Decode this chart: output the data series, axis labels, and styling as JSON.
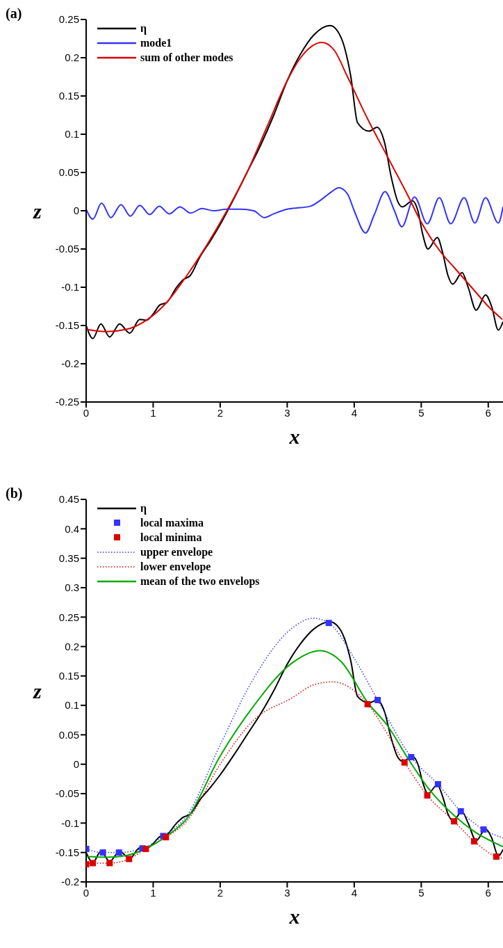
{
  "chart_data": [
    {
      "type": "line",
      "title": "(a)",
      "xlabel": "x",
      "ylabel": "z",
      "xlim": [
        0,
        6.22
      ],
      "xticks": [
        0,
        1,
        2,
        3,
        4,
        5,
        6
      ],
      "ylim": [
        -0.25,
        0.25
      ],
      "yticks": [
        -0.25,
        -0.2,
        -0.15,
        -0.1,
        -0.05,
        0,
        0.05,
        0.1,
        0.15,
        0.2,
        0.25
      ],
      "legend": "top left",
      "series": [
        {
          "name": "η",
          "color": "#000000",
          "x": [
            0,
            0.1,
            0.22,
            0.35,
            0.5,
            0.65,
            0.8,
            0.9,
            1.0,
            1.1,
            1.2,
            1.35,
            1.45,
            1.55,
            1.7,
            1.85,
            2.0,
            2.2,
            2.4,
            2.6,
            2.8,
            3.0,
            3.2,
            3.4,
            3.64,
            3.75,
            3.85,
            3.95,
            4.05,
            4.22,
            4.34,
            4.45,
            4.55,
            4.65,
            4.72,
            4.87,
            4.95,
            5.02,
            5.1,
            5.24,
            5.32,
            5.4,
            5.47,
            5.61,
            5.7,
            5.82,
            5.96,
            6.05,
            6.15,
            6.22
          ],
          "values": [
            -0.15,
            -0.167,
            -0.148,
            -0.165,
            -0.148,
            -0.16,
            -0.142,
            -0.143,
            -0.135,
            -0.123,
            -0.12,
            -0.1,
            -0.09,
            -0.085,
            -0.06,
            -0.04,
            -0.018,
            0.015,
            0.05,
            0.085,
            0.125,
            0.17,
            0.205,
            0.23,
            0.242,
            0.235,
            0.215,
            0.175,
            0.115,
            0.104,
            0.109,
            0.09,
            0.045,
            0.012,
            0.005,
            0.013,
            0.0,
            -0.03,
            -0.05,
            -0.035,
            -0.055,
            -0.085,
            -0.096,
            -0.081,
            -0.1,
            -0.13,
            -0.11,
            -0.125,
            -0.156,
            -0.145
          ]
        },
        {
          "name": "mode1",
          "color": "#3333ff",
          "x": [
            0,
            0.1,
            0.23,
            0.37,
            0.52,
            0.66,
            0.8,
            0.95,
            1.09,
            1.24,
            1.4,
            1.56,
            1.73,
            1.9,
            2.1,
            2.3,
            2.5,
            2.66,
            2.8,
            3.0,
            3.2,
            3.35,
            3.5,
            3.65,
            3.77,
            3.9,
            4.0,
            4.17,
            4.3,
            4.46,
            4.6,
            4.71,
            4.9,
            5.09,
            5.27,
            5.44,
            5.64,
            5.8,
            5.96,
            6.15,
            6.22
          ],
          "values": [
            0.002,
            -0.011,
            0.01,
            -0.009,
            0.008,
            -0.007,
            0.007,
            -0.005,
            0.006,
            -0.004,
            0.005,
            -0.003,
            0.003,
            0.0,
            0.002,
            0.002,
            0.0,
            -0.009,
            -0.004,
            0.002,
            0.004,
            0.006,
            0.014,
            0.024,
            0.03,
            0.022,
            0.0,
            -0.029,
            -0.005,
            0.025,
            0.0,
            -0.021,
            0.018,
            -0.017,
            0.017,
            -0.017,
            0.017,
            -0.016,
            0.017,
            -0.016,
            0.005
          ]
        },
        {
          "name": "sum of other modes",
          "color": "#dd0000",
          "x": [
            0,
            0.3,
            0.6,
            0.9,
            1.2,
            1.5,
            1.8,
            2.1,
            2.4,
            2.7,
            3.0,
            3.2,
            3.52,
            3.7,
            3.9,
            4.2,
            4.5,
            4.8,
            5.0,
            5.3,
            5.5,
            5.8,
            6.0,
            6.21
          ],
          "values": [
            -0.155,
            -0.158,
            -0.155,
            -0.143,
            -0.12,
            -0.085,
            -0.045,
            0.0,
            0.05,
            0.11,
            0.17,
            0.2,
            0.22,
            0.21,
            0.175,
            0.12,
            0.07,
            0.02,
            -0.015,
            -0.055,
            -0.075,
            -0.105,
            -0.125,
            -0.142
          ]
        }
      ]
    },
    {
      "type": "line",
      "title": "(b)",
      "xlabel": "x",
      "ylabel": "z",
      "xlim": [
        0,
        6.22
      ],
      "xticks": [
        0,
        1,
        2,
        3,
        4,
        5,
        6
      ],
      "ylim": [
        -0.2,
        0.45
      ],
      "yticks": [
        -0.2,
        -0.15,
        -0.1,
        -0.05,
        0,
        0.05,
        0.1,
        0.15,
        0.2,
        0.25,
        0.3,
        0.35,
        0.4,
        0.45
      ],
      "legend": "top left",
      "series": [
        {
          "name": "η",
          "color": "#000000",
          "x": [
            0,
            0.1,
            0.22,
            0.35,
            0.5,
            0.65,
            0.8,
            0.9,
            1.0,
            1.1,
            1.2,
            1.35,
            1.45,
            1.55,
            1.7,
            1.85,
            2.0,
            2.2,
            2.4,
            2.6,
            2.8,
            3.0,
            3.2,
            3.4,
            3.64,
            3.75,
            3.85,
            3.95,
            4.05,
            4.22,
            4.34,
            4.45,
            4.55,
            4.65,
            4.72,
            4.87,
            4.95,
            5.02,
            5.1,
            5.24,
            5.32,
            5.4,
            5.47,
            5.61,
            5.7,
            5.82,
            5.96,
            6.05,
            6.15,
            6.22
          ],
          "values": [
            -0.15,
            -0.167,
            -0.148,
            -0.165,
            -0.148,
            -0.16,
            -0.142,
            -0.143,
            -0.135,
            -0.123,
            -0.12,
            -0.1,
            -0.09,
            -0.085,
            -0.06,
            -0.04,
            -0.018,
            0.015,
            0.05,
            0.085,
            0.125,
            0.17,
            0.205,
            0.23,
            0.242,
            0.235,
            0.215,
            0.175,
            0.115,
            0.104,
            0.109,
            0.09,
            0.045,
            0.012,
            0.005,
            0.013,
            0.0,
            -0.03,
            -0.05,
            -0.035,
            -0.055,
            -0.085,
            -0.096,
            -0.081,
            -0.1,
            -0.13,
            -0.11,
            -0.125,
            -0.156,
            -0.145
          ]
        },
        {
          "name": "local maxima",
          "type": "scatter",
          "marker": "square",
          "color": "#3333ff",
          "x": [
            0,
            0.25,
            0.49,
            0.84,
            1.15,
            3.62,
            4.35,
            4.85,
            5.25,
            5.59,
            5.93
          ],
          "values": [
            -0.144,
            -0.15,
            -0.15,
            -0.143,
            -0.122,
            0.24,
            0.109,
            0.012,
            -0.034,
            -0.08,
            -0.111
          ]
        },
        {
          "name": "local minima",
          "type": "scatter",
          "marker": "square",
          "color": "#dd0000",
          "x": [
            0,
            0.1,
            0.35,
            0.64,
            0.89,
            1.19,
            4.2,
            4.75,
            5.09,
            5.49,
            5.79,
            6.12
          ],
          "values": [
            -0.17,
            -0.168,
            -0.168,
            -0.161,
            -0.144,
            -0.124,
            0.102,
            0.003,
            -0.053,
            -0.097,
            -0.131,
            -0.157
          ]
        },
        {
          "name": "upper envelope",
          "line_style": "dotted",
          "color": "#3333ff",
          "x": [
            0,
            0.25,
            0.49,
            0.84,
            1.15,
            1.5,
            2.0,
            2.5,
            3.06,
            3.39,
            3.62,
            4.0,
            4.35,
            4.85,
            5.25,
            5.59,
            5.93,
            6.22
          ],
          "values": [
            -0.144,
            -0.15,
            -0.15,
            -0.143,
            -0.122,
            -0.088,
            0.033,
            0.146,
            0.23,
            0.248,
            0.24,
            0.18,
            0.109,
            0.012,
            -0.034,
            -0.08,
            -0.111,
            -0.125
          ]
        },
        {
          "name": "lower envelope",
          "line_style": "dotted",
          "color": "#dd0000",
          "x": [
            0,
            0.1,
            0.35,
            0.64,
            0.89,
            1.19,
            1.5,
            2.0,
            2.5,
            3.06,
            3.4,
            3.68,
            4.0,
            4.2,
            4.75,
            5.09,
            5.49,
            5.79,
            6.12,
            6.22
          ],
          "values": [
            -0.17,
            -0.168,
            -0.168,
            -0.161,
            -0.144,
            -0.124,
            -0.097,
            0.0,
            0.075,
            0.112,
            0.135,
            0.14,
            0.125,
            0.102,
            0.003,
            -0.053,
            -0.097,
            -0.131,
            -0.157,
            -0.16
          ]
        },
        {
          "name": "mean of the two envelops",
          "color": "#00aa00",
          "x": [
            0,
            0.3,
            0.6,
            0.9,
            1.2,
            1.5,
            2.0,
            2.5,
            3.06,
            3.49,
            3.8,
            4.2,
            4.5,
            4.8,
            5.1,
            5.5,
            5.8,
            6.22
          ],
          "values": [
            -0.157,
            -0.158,
            -0.155,
            -0.143,
            -0.122,
            -0.093,
            0.014,
            0.099,
            0.171,
            0.193,
            0.175,
            0.105,
            0.065,
            0.01,
            -0.04,
            -0.088,
            -0.115,
            -0.14
          ]
        }
      ]
    }
  ]
}
